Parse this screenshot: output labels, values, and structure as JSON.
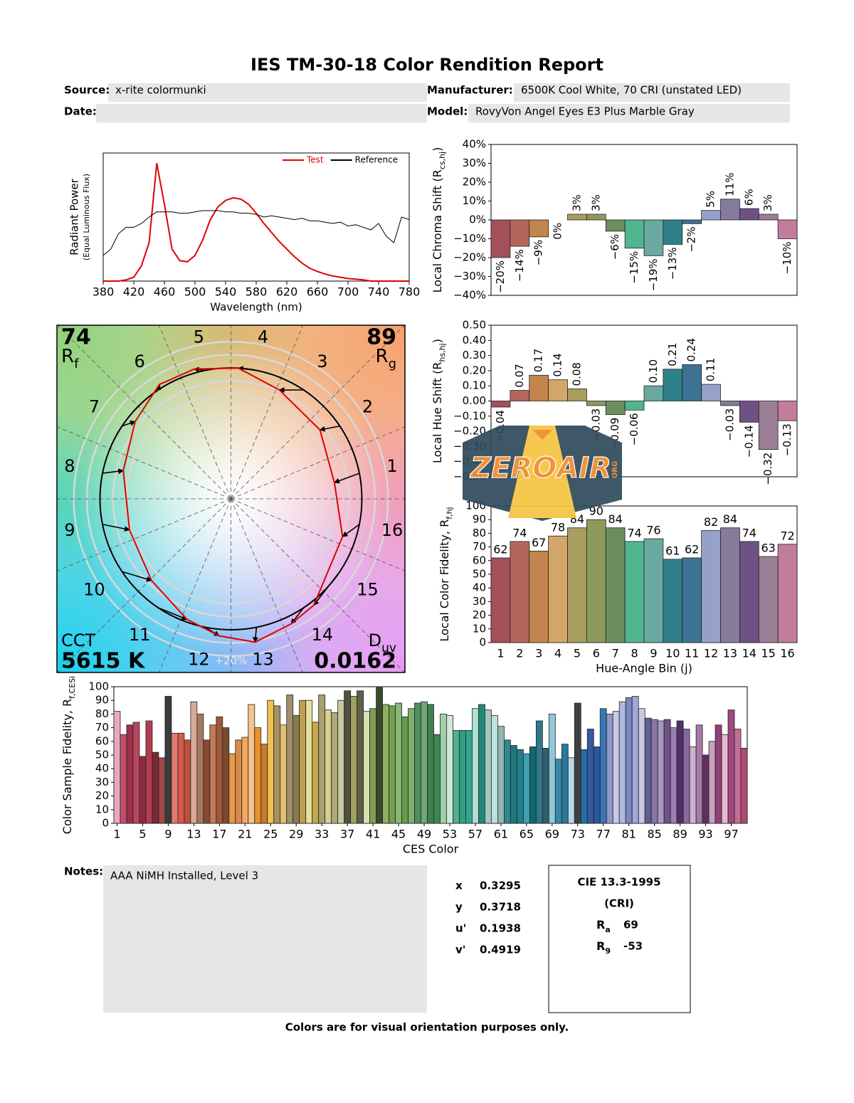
{
  "title": "IES TM-30-18 Color Rendition Report",
  "header": {
    "source": {
      "label": "Source:",
      "value": "x-rite colormunki"
    },
    "date": {
      "label": "Date:"
    },
    "manufacturer": {
      "label": "Manufacturer:",
      "value": "6500K Cool White, 70 CRI (unstated LED)"
    },
    "model": {
      "label": "Model:",
      "value": "RovyVon Angel Eyes E3 Plus Marble Gray"
    }
  },
  "chart_data": [
    {
      "type": "line",
      "x": [
        380,
        390,
        400,
        410,
        420,
        430,
        440,
        450,
        460,
        470,
        480,
        490,
        500,
        510,
        520,
        530,
        540,
        550,
        560,
        570,
        580,
        590,
        600,
        610,
        620,
        630,
        640,
        650,
        660,
        670,
        680,
        690,
        700,
        710,
        720,
        730,
        740,
        750,
        760,
        770,
        780
      ],
      "series": [
        {
          "name": "Test",
          "color": "#e00000",
          "values": [
            0,
            0,
            0,
            0.01,
            0.03,
            0.12,
            0.3,
            0.92,
            0.6,
            0.25,
            0.16,
            0.15,
            0.2,
            0.32,
            0.48,
            0.58,
            0.63,
            0.65,
            0.64,
            0.6,
            0.53,
            0.45,
            0.38,
            0.31,
            0.25,
            0.19,
            0.14,
            0.1,
            0.075,
            0.055,
            0.04,
            0.03,
            0.02,
            0.015,
            0.01,
            0,
            0,
            0,
            0,
            0,
            0
          ]
        },
        {
          "name": "Reference",
          "color": "#000000",
          "values": [
            0.2,
            0.25,
            0.37,
            0.42,
            0.42,
            0.45,
            0.5,
            0.54,
            0.54,
            0.54,
            0.53,
            0.53,
            0.54,
            0.55,
            0.55,
            0.55,
            0.54,
            0.54,
            0.53,
            0.53,
            0.52,
            0.5,
            0.51,
            0.5,
            0.49,
            0.48,
            0.49,
            0.47,
            0.47,
            0.46,
            0.45,
            0.46,
            0.43,
            0.44,
            0.42,
            0.4,
            0.45,
            0.35,
            0.3,
            0.5,
            0.48
          ]
        }
      ],
      "xlim": [
        380,
        780
      ],
      "xticks": [
        380,
        420,
        460,
        500,
        540,
        580,
        620,
        660,
        700,
        740,
        780
      ],
      "ylim": [
        0,
        1
      ],
      "xlabel": "Wavelength (nm)",
      "ylabel": "Radiant Power",
      "ylabel_note": "(Equal Luminous Flux)",
      "legend": "upper right"
    },
    {
      "type": "bar",
      "values": [
        -20,
        -14,
        -9,
        0,
        3,
        3,
        -6,
        -15,
        -19,
        -13,
        -2,
        5,
        11,
        6,
        3,
        -10
      ],
      "value_labels": [
        "−20%",
        "−14%",
        "−9%",
        "0%",
        "3%",
        "3%",
        "−6%",
        "−15%",
        "−19%",
        "−13%",
        "−2%",
        "5%",
        "11%",
        "6%",
        "3%",
        "−10%"
      ],
      "colors": [
        "#a3505a",
        "#b5665a",
        "#c3854e",
        "#d3a76b",
        "#a79e5f",
        "#8e9a5b",
        "#6a8f5d",
        "#4fb68f",
        "#6ba8a0",
        "#2f8088",
        "#3d7295",
        "#95a1c9",
        "#857b9c",
        "#6d5283",
        "#9b7f97",
        "#c27c9c"
      ],
      "ylim": [
        -40,
        40
      ],
      "yticks": [
        {
          "value": 40,
          "label": "40%"
        },
        {
          "value": 30,
          "label": "30%"
        },
        {
          "value": 20,
          "label": "20%"
        },
        {
          "value": 10,
          "label": "10%"
        },
        {
          "value": 0,
          "label": "0%"
        },
        {
          "value": -10,
          "label": "−10%"
        },
        {
          "value": -20,
          "label": "−20%"
        },
        {
          "value": -30,
          "label": "−30%"
        },
        {
          "value": -40,
          "label": "−40%"
        }
      ],
      "ylabel": {
        "text": "Local Chroma Shift (R",
        "sub": "cs,hj",
        "end": ")"
      }
    },
    {
      "type": "bar",
      "values": [
        -0.04,
        0.07,
        0.17,
        0.14,
        0.08,
        -0.03,
        -0.09,
        -0.06,
        0.1,
        0.21,
        0.24,
        0.11,
        -0.03,
        -0.14,
        -0.32,
        -0.13
      ],
      "value_labels": [
        "−0.04",
        "0.07",
        "0.17",
        "0.14",
        "0.08",
        "−0.03",
        "−0.09",
        "−0.06",
        "0.10",
        "0.21",
        "0.24",
        "0.11",
        "−0.03",
        "−0.14",
        "−0.32",
        "−0.13"
      ],
      "colors": [
        "#a3505a",
        "#b5665a",
        "#c3854e",
        "#d3a76b",
        "#a79e5f",
        "#8e9a5b",
        "#6a8f5d",
        "#4fb68f",
        "#6ba8a0",
        "#2f8088",
        "#3d7295",
        "#95a1c9",
        "#857b9c",
        "#6d5283",
        "#9b7f97",
        "#c27c9c"
      ],
      "ylim": [
        -0.5,
        0.5
      ],
      "yticks": [
        {
          "value": 0.5,
          "label": "0.50"
        },
        {
          "value": 0.4,
          "label": "0.40"
        },
        {
          "value": 0.3,
          "label": "0.30"
        },
        {
          "value": 0.2,
          "label": "0.20"
        },
        {
          "value": 0.1,
          "label": "0.10"
        },
        {
          "value": 0,
          "label": "0.00"
        },
        {
          "value": -0.1,
          "label": "−0.10"
        },
        {
          "value": -0.2,
          "label": "−0.20"
        },
        {
          "value": -0.3,
          "label": "−0.30"
        },
        {
          "value": -0.4,
          "label": "−0.40"
        },
        {
          "value": -0.5,
          "label": "−0.50"
        }
      ],
      "ylabel": {
        "text": "Local Hue Shift (R",
        "sub": "hs,hj",
        "end": ")"
      }
    },
    {
      "type": "bar",
      "categories": [
        "1",
        "2",
        "3",
        "4",
        "5",
        "6",
        "7",
        "8",
        "9",
        "10",
        "11",
        "12",
        "13",
        "14",
        "15",
        "16"
      ],
      "values": [
        62,
        74,
        67,
        78,
        84,
        90,
        84,
        74,
        76,
        61,
        62,
        82,
        84,
        74,
        63,
        72
      ],
      "colors": [
        "#a3505a",
        "#b5665a",
        "#c3854e",
        "#d3a76b",
        "#a79e5f",
        "#8e9a5b",
        "#6a8f5d",
        "#4fb68f",
        "#6ba8a0",
        "#2f8088",
        "#3d7295",
        "#95a1c9",
        "#857b9c",
        "#6d5283",
        "#9b7f97",
        "#c27c9c"
      ],
      "ylim": [
        0,
        100
      ],
      "yticks": [
        0,
        10,
        20,
        30,
        40,
        50,
        60,
        70,
        80,
        90,
        100
      ],
      "xlabel": "Hue-Angle Bin (j)",
      "ylabel": {
        "text": "Local Color Fidelity, R",
        "sub": "f,hj"
      }
    },
    {
      "type": "vector",
      "rf": 74,
      "rf_label": {
        "text": "R",
        "sub": "f"
      },
      "rg": 89,
      "rg_label": {
        "text": "R",
        "sub": "g"
      },
      "cct_label": "CCT",
      "cct": "5615 K",
      "duv_label": {
        "text": "D",
        "sub": "uv"
      },
      "duv": 0.0162,
      "bins": [
        "1",
        "2",
        "3",
        "4",
        "5",
        "6",
        "7",
        "8",
        "9",
        "10",
        "11",
        "12",
        "13",
        "14",
        "15",
        "16"
      ],
      "scale_label": "+20%"
    },
    {
      "type": "bar",
      "x": [
        1,
        2,
        3,
        4,
        5,
        6,
        7,
        8,
        9,
        10,
        11,
        12,
        13,
        14,
        15,
        16,
        17,
        18,
        19,
        20,
        21,
        22,
        23,
        24,
        25,
        26,
        27,
        28,
        29,
        30,
        31,
        32,
        33,
        34,
        35,
        36,
        37,
        38,
        39,
        40,
        41,
        42,
        43,
        44,
        45,
        46,
        47,
        48,
        49,
        50,
        51,
        52,
        53,
        54,
        55,
        56,
        57,
        58,
        59,
        60,
        61,
        62,
        63,
        64,
        65,
        66,
        67,
        68,
        69,
        70,
        71,
        72,
        73,
        74,
        75,
        76,
        77,
        78,
        79,
        80,
        81,
        82,
        83,
        84,
        85,
        86,
        87,
        88,
        89,
        90,
        91,
        92,
        93,
        94,
        95,
        96,
        97,
        98,
        99
      ],
      "values": [
        82,
        65,
        72,
        74,
        49,
        75,
        52,
        48,
        93,
        66,
        66,
        61,
        89,
        80,
        61,
        72,
        78,
        70,
        51,
        61,
        63,
        87,
        70,
        58,
        90,
        86,
        72,
        94,
        79,
        90,
        90,
        74,
        94,
        83,
        81,
        90,
        97,
        93,
        97,
        82,
        84,
        100,
        87,
        86,
        88,
        78,
        84,
        88,
        89,
        87,
        65,
        80,
        79,
        68,
        68,
        68,
        84,
        87,
        83,
        79,
        71,
        61,
        57,
        54,
        51,
        56,
        75,
        55,
        80,
        47,
        58,
        48,
        88,
        54,
        69,
        56,
        84,
        80,
        82,
        89,
        92,
        93,
        84,
        77,
        76,
        75,
        76,
        70,
        75,
        69,
        56,
        72,
        50,
        60,
        72,
        65,
        83,
        69,
        55
      ],
      "colors": [
        "#e8a8bf",
        "#c44f6a",
        "#9e3049",
        "#b8475e",
        "#8f2b3f",
        "#b53c4e",
        "#7a2936",
        "#a04848",
        "#3a3a3a",
        "#e07a6e",
        "#d65a4a",
        "#c0503a",
        "#d8a898",
        "#a8785e",
        "#8a4a30",
        "#c27a5a",
        "#a0583a",
        "#7a4a30",
        "#e89a48",
        "#d88a4a",
        "#f0a860",
        "#f4c48e",
        "#e8902a",
        "#c87a30",
        "#f0c050",
        "#a89060",
        "#e8c070",
        "#a0906a",
        "#8a7a50",
        "#c0a050",
        "#e8e0a0",
        "#c8a848",
        "#a8a070",
        "#d8d090",
        "#b0a878",
        "#c8c8a0",
        "#505040",
        "#a0a060",
        "#606048",
        "#d8e0b0",
        "#80a050",
        "#3a4a2a",
        "#90b060",
        "#70a050",
        "#88b878",
        "#60a048",
        "#80b070",
        "#509060",
        "#70a878",
        "#408050",
        "#3a8a50",
        "#a0d0a8",
        "#d0e8d8",
        "#50b090",
        "#30a080",
        "#30a890",
        "#b0e0d0",
        "#208878",
        "#a0c8c0",
        "#c0e0e0",
        "#90b8b0",
        "#308890",
        "#207878",
        "#208090",
        "#40a0b0",
        "#106870",
        "#307888",
        "#306070",
        "#90c8d8",
        "#3888a8",
        "#2878a0",
        "#b8d8e8",
        "#404040",
        "#2070a8",
        "#3858a0",
        "#2858a0",
        "#3878b8",
        "#9098c8",
        "#c8c8e8",
        "#b0b8e0",
        "#7888c0",
        "#a0a8d8",
        "#c8c8e0",
        "#606090",
        "#8878a8",
        "#a898c0",
        "#705088",
        "#9880b0",
        "#503068",
        "#8868a0",
        "#d0b0d0",
        "#a878a8",
        "#603060",
        "#c8a0c0",
        "#904078",
        "#e8b8d0",
        "#a04880",
        "#c07098",
        "#b04870"
      ],
      "xlim": [
        0.5,
        99.5
      ],
      "xticks": [
        1,
        5,
        9,
        13,
        17,
        21,
        25,
        29,
        33,
        37,
        41,
        45,
        49,
        53,
        57,
        61,
        65,
        69,
        73,
        77,
        81,
        85,
        89,
        93,
        97
      ],
      "ylim": [
        0,
        100
      ],
      "yticks": [
        0,
        10,
        20,
        30,
        40,
        50,
        60,
        70,
        80,
        90,
        100
      ],
      "xlabel": "CES Color",
      "ylabel": {
        "text": "Color Sample Fidelity, R",
        "sub": "f,CESi"
      }
    }
  ],
  "notes": {
    "label": "Notes:",
    "text": "AAA NiMH Installed, Level 3"
  },
  "chromaticity": [
    {
      "label": "x",
      "value": 0.3295
    },
    {
      "label": "y",
      "value": 0.3718
    },
    {
      "label": "u'",
      "value": 0.1938
    },
    {
      "label": "v'",
      "value": 0.4919
    }
  ],
  "cri": {
    "title": "CIE 13.3-1995",
    "subtitle": "(CRI)",
    "items": [
      {
        "label": {
          "text": "R",
          "sub": "a"
        },
        "value": 69
      },
      {
        "label": {
          "text": "R",
          "sub": "9"
        },
        "value": -53
      }
    ]
  },
  "footer": "Colors are for visual orientation purposes only.",
  "watermark": {
    "text": "ZEROAIR",
    "sub": "ORG"
  }
}
